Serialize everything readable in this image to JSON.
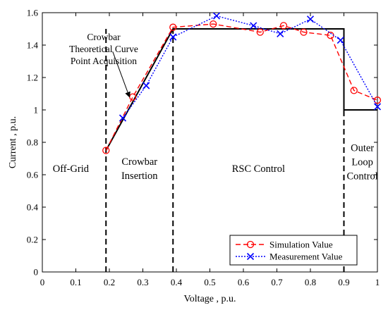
{
  "chart_data": {
    "type": "line",
    "xlabel": "Voltage , p.u.",
    "ylabel": "Current , p.u.",
    "xlim": [
      0,
      1
    ],
    "ylim": [
      0,
      1.6
    ],
    "x_ticks": [
      "0",
      "0.1",
      "0.2",
      "0.3",
      "0.4",
      "0.5",
      "0.6",
      "0.7",
      "0.8",
      "0.9",
      "1"
    ],
    "y_ticks": [
      "0",
      "0.2",
      "0.4",
      "0.6",
      "0.8",
      "1",
      "1.2",
      "1.4",
      "1.6"
    ],
    "grid": false,
    "legend_position": "bottom-right",
    "series": [
      {
        "name": "",
        "style": "solid",
        "color": "#000000",
        "marker": "none",
        "x": [
          0.19,
          0.39,
          0.39,
          0.9,
          0.9,
          1.0
        ],
        "y": [
          0.75,
          1.5,
          1.5,
          1.5,
          1.0,
          1.0
        ]
      },
      {
        "name": "Simulation Value",
        "style": "dashed",
        "color": "#ff0000",
        "marker": "circle",
        "x": [
          0.19,
          0.27,
          0.39,
          0.51,
          0.65,
          0.72,
          0.78,
          0.86,
          0.93,
          1.0
        ],
        "y": [
          0.75,
          1.08,
          1.51,
          1.53,
          1.48,
          1.52,
          1.48,
          1.46,
          1.12,
          1.06
        ]
      },
      {
        "name": "Measurement Value",
        "style": "dotted",
        "color": "#0000ff",
        "marker": "x",
        "x": [
          0.24,
          0.31,
          0.39,
          0.52,
          0.63,
          0.71,
          0.8,
          0.89,
          1.0
        ],
        "y": [
          0.95,
          1.15,
          1.45,
          1.58,
          1.52,
          1.47,
          1.56,
          1.43,
          1.02
        ]
      }
    ],
    "boundaries": [
      0.19,
      0.39,
      0.9
    ],
    "region_labels": [
      {
        "lines": [
          "Off-Grid"
        ],
        "x": 0.085,
        "y": 0.64
      },
      {
        "lines": [
          "Crowbar",
          "Insertion"
        ],
        "x": 0.29,
        "y": 0.64
      },
      {
        "lines": [
          "RSC Control"
        ],
        "x": 0.645,
        "y": 0.64
      },
      {
        "lines": [
          "Outer",
          "Loop",
          "Control"
        ],
        "x": 0.955,
        "y": 0.68
      }
    ],
    "annotation": {
      "lines": [
        "Crowbar",
        "Theoretical Curve",
        "Point Acquisition"
      ],
      "arrow_from": [
        0.21,
        1.36
      ],
      "arrow_to": [
        0.26,
        1.08
      ]
    }
  }
}
